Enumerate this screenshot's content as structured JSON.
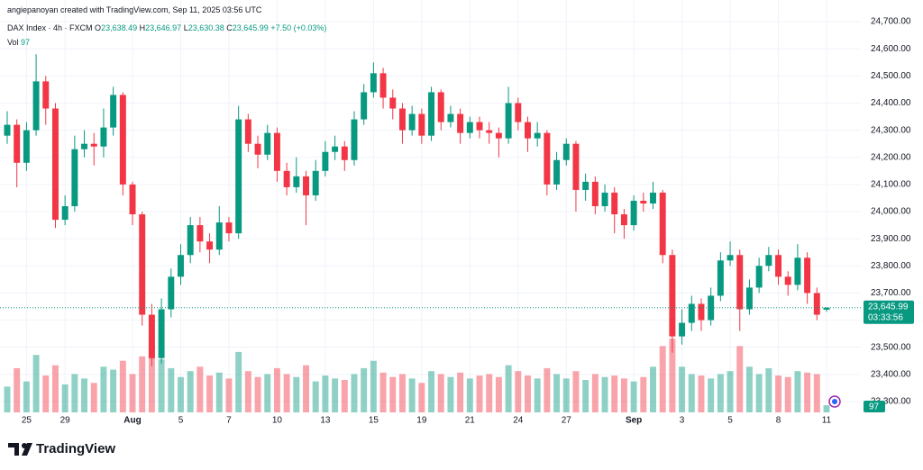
{
  "header": {
    "attribution": "angiepanoyan created with TradingView.com, Sep 11, 2025 03:56 UTC",
    "symbol": "DAX Index · 4h · FXCM",
    "ohlc": [
      {
        "key": "O",
        "text": "23,638.49"
      },
      {
        "key": "H",
        "text": "23,646.97"
      },
      {
        "key": "L",
        "text": "23,630.38"
      },
      {
        "key": "C",
        "text": "23,645.99"
      }
    ],
    "change": "+7.50 (+0.03%)",
    "volume_key": "Vol",
    "volume_text": "97"
  },
  "chart_data": {
    "type": "candlestick",
    "categories": [
      null,
      null,
      "25",
      null,
      null,
      null,
      "29",
      null,
      null,
      null,
      null,
      null,
      null,
      "Aug",
      null,
      null,
      null,
      null,
      "5",
      null,
      null,
      null,
      null,
      "7",
      null,
      null,
      null,
      null,
      "10",
      null,
      null,
      null,
      null,
      "13",
      null,
      null,
      null,
      null,
      "15",
      null,
      null,
      null,
      null,
      "19",
      null,
      null,
      null,
      null,
      "21",
      null,
      null,
      null,
      null,
      "24",
      null,
      null,
      null,
      null,
      "27",
      null,
      null,
      null,
      null,
      null,
      null,
      "Sep",
      null,
      null,
      null,
      null,
      "3",
      null,
      null,
      null,
      null,
      "5",
      null,
      null,
      null,
      null,
      "8",
      null,
      null,
      null,
      null,
      "11"
    ],
    "open": [
      24280,
      24320,
      24180,
      24300,
      24480,
      24380,
      23970,
      24020,
      24230,
      24250,
      24240,
      24310,
      24430,
      24100,
      23990,
      23620,
      23460,
      23640,
      23760,
      23840,
      23950,
      23890,
      23860,
      23960,
      23920,
      24340,
      24250,
      24210,
      24290,
      24150,
      24090,
      24130,
      24060,
      24150,
      24220,
      24240,
      24190,
      24340,
      24440,
      24510,
      24420,
      24380,
      24300,
      24360,
      24280,
      24440,
      24330,
      24360,
      24290,
      24330,
      24300,
      24290,
      24270,
      24400,
      24330,
      24270,
      24290,
      24100,
      24190,
      24250,
      24080,
      24110,
      24020,
      24070,
      23990,
      23950,
      24040,
      24030,
      24070,
      23840,
      23540,
      23590,
      23660,
      23600,
      23690,
      23820,
      23840,
      23640,
      23720,
      23800,
      23840,
      23760,
      23730,
      23830,
      23700,
      23638.49
    ],
    "high": [
      24370,
      24340,
      24330,
      24580,
      24500,
      24400,
      24060,
      24280,
      24300,
      24290,
      24380,
      24460,
      24440,
      24110,
      24000,
      23660,
      23680,
      23790,
      23880,
      23980,
      23980,
      23920,
      24020,
      23980,
      24390,
      24360,
      24280,
      24320,
      24310,
      24180,
      24200,
      24150,
      24190,
      24260,
      24280,
      24260,
      24370,
      24470,
      24550,
      24530,
      24450,
      24400,
      24390,
      24380,
      24460,
      24450,
      24390,
      24380,
      24350,
      24350,
      24330,
      24310,
      24460,
      24420,
      24350,
      24330,
      24300,
      24220,
      24270,
      24260,
      24140,
      24130,
      24100,
      24090,
      24010,
      24060,
      24070,
      24110,
      24080,
      23860,
      23640,
      23690,
      23680,
      23720,
      23850,
      23890,
      23860,
      23750,
      23830,
      23870,
      23860,
      23780,
      23880,
      23850,
      23720,
      23646.97
    ],
    "low": [
      24250,
      24090,
      24150,
      24280,
      24320,
      23940,
      23950,
      24000,
      24200,
      24170,
      24200,
      24280,
      24060,
      23950,
      23580,
      23430,
      23440,
      23610,
      23730,
      23810,
      23850,
      23810,
      23840,
      23890,
      23900,
      24220,
      24160,
      24190,
      24110,
      24060,
      24070,
      23950,
      24040,
      24130,
      24190,
      24150,
      24170,
      24320,
      24420,
      24380,
      24340,
      24250,
      24280,
      24250,
      24260,
      24300,
      24310,
      24250,
      24270,
      24270,
      24250,
      24200,
      24250,
      24300,
      24220,
      24240,
      24060,
      24080,
      24170,
      24000,
      24040,
      23990,
      24000,
      23920,
      23900,
      23930,
      24000,
      24010,
      23810,
      23480,
      23510,
      23560,
      23560,
      23580,
      23670,
      23800,
      23560,
      23620,
      23700,
      23780,
      23730,
      23690,
      23710,
      23660,
      23600,
      23630.38
    ],
    "close": [
      24320,
      24180,
      24300,
      24480,
      24380,
      23970,
      24020,
      24230,
      24250,
      24240,
      24310,
      24430,
      24100,
      23990,
      23620,
      23460,
      23640,
      23760,
      23840,
      23950,
      23890,
      23860,
      23960,
      23920,
      24340,
      24250,
      24210,
      24290,
      24150,
      24090,
      24130,
      24060,
      24150,
      24220,
      24240,
      24190,
      24340,
      24440,
      24510,
      24420,
      24380,
      24300,
      24360,
      24280,
      24440,
      24330,
      24360,
      24290,
      24330,
      24300,
      24290,
      24270,
      24400,
      24330,
      24270,
      24290,
      24100,
      24190,
      24250,
      24080,
      24110,
      24020,
      24070,
      23990,
      23950,
      24040,
      24030,
      24070,
      23840,
      23540,
      23590,
      23660,
      23600,
      23690,
      23820,
      23840,
      23640,
      23720,
      23800,
      23840,
      23760,
      23730,
      23830,
      23700,
      23620,
      23645.99
    ],
    "volume": [
      350,
      600,
      420,
      780,
      500,
      640,
      380,
      520,
      460,
      400,
      620,
      580,
      700,
      520,
      760,
      980,
      720,
      600,
      480,
      560,
      620,
      500,
      540,
      460,
      820,
      560,
      480,
      520,
      600,
      520,
      480,
      640,
      420,
      500,
      460,
      440,
      520,
      600,
      700,
      540,
      480,
      520,
      460,
      400,
      560,
      520,
      480,
      540,
      460,
      500,
      520,
      480,
      640,
      560,
      500,
      460,
      600,
      520,
      460,
      560,
      440,
      520,
      480,
      500,
      460,
      420,
      480,
      620,
      900,
      1000,
      620,
      520,
      500,
      460,
      520,
      560,
      900,
      620,
      520,
      600,
      500,
      480,
      560,
      540,
      520,
      97
    ],
    "vlim": [
      0,
      1100
    ],
    "ylim": [
      23260,
      24780
    ],
    "yticks": [
      {
        "value": 23300,
        "label": "23,300.00"
      },
      {
        "value": 23400,
        "label": "23,400.00"
      },
      {
        "value": 23500,
        "label": "23,500.00"
      },
      {
        "value": 23600,
        "label": "23,600.00"
      },
      {
        "value": 23700,
        "label": "23,700.00"
      },
      {
        "value": 23800,
        "label": "23,800.00"
      },
      {
        "value": 23900,
        "label": "23,900.00"
      },
      {
        "value": 24000,
        "label": "24,000.00"
      },
      {
        "value": 24100,
        "label": "24,100.00"
      },
      {
        "value": 24200,
        "label": "24,200.00"
      },
      {
        "value": 24300,
        "label": "24,300.00"
      },
      {
        "value": 24400,
        "label": "24,400.00"
      },
      {
        "value": 24500,
        "label": "24,500.00"
      },
      {
        "value": 24600,
        "label": "24,600.00"
      },
      {
        "value": 24700,
        "label": "24,700.00"
      }
    ],
    "last_price_label": "23,645.99",
    "countdown": "03:33:56",
    "last_volume_label": "97",
    "up_color": "#089981",
    "down_color": "#f23645",
    "grid": true
  },
  "footer": {
    "brand": "TradingView"
  }
}
